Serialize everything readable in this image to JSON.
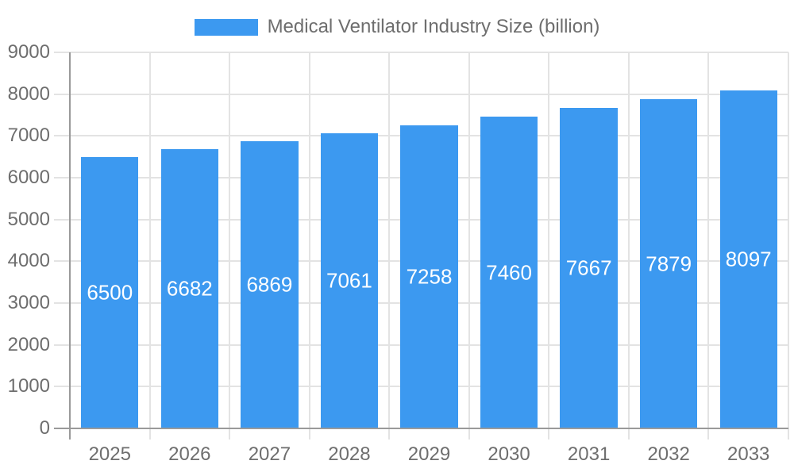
{
  "chart_data": {
    "type": "bar",
    "title": "Medical Ventilator Industry Size (billion)",
    "categories": [
      "2025",
      "2026",
      "2027",
      "2028",
      "2029",
      "2030",
      "2031",
      "2032",
      "2033"
    ],
    "values": [
      6500,
      6682,
      6869,
      7061,
      7258,
      7460,
      7667,
      7879,
      8097
    ],
    "xlabel": "",
    "ylabel": "",
    "ylim": [
      0,
      9000
    ],
    "ytick_step": 1000,
    "grid": true,
    "legend_position": "top",
    "value_labels": "inside-center-white",
    "colors": {
      "bar": "#3C99F0",
      "grid": "#e3e3e3",
      "axis": "#9a9a9a",
      "text": "#6e6e6e",
      "bar_label": "#ffffff"
    }
  }
}
